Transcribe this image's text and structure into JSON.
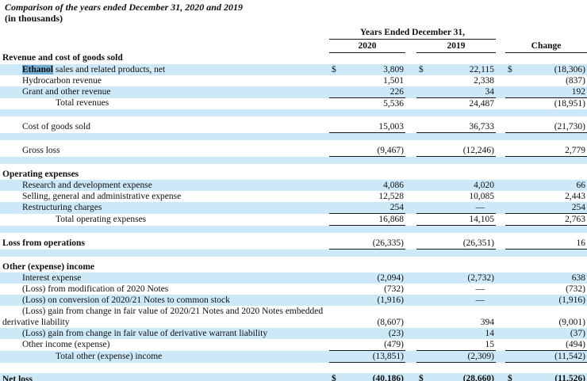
{
  "title": "Comparison of the years ended December 31, 2020 and 2019",
  "subtitle": "(in thousands)",
  "colors": {
    "stripe": "#cde9f7",
    "highlight": "#74aed4",
    "rule": "#1a1a1a"
  },
  "table": {
    "span_header": "Years Ended December 31,",
    "columns": [
      "2020",
      "2019",
      "Change"
    ],
    "currency_symbol": "$",
    "rows": [
      {
        "t": "section",
        "label": "Revenue and cost of goods sold"
      },
      {
        "t": "data",
        "label": "Ethanol sales and related products, net",
        "hl": "Ethanol",
        "ind": 1,
        "bg": 1,
        "usd": true,
        "v": [
          "3,809",
          "22,115",
          "(18,306)"
        ]
      },
      {
        "t": "data",
        "label": "Hydrocarbon revenue",
        "ind": 1,
        "v": [
          "1,501",
          "2,338",
          "(837)"
        ]
      },
      {
        "t": "data",
        "label": "Grant and other revenue",
        "ind": 1,
        "bg": 1,
        "rule": "single",
        "v": [
          "226",
          "34",
          "192"
        ]
      },
      {
        "t": "data",
        "label": "Total revenues",
        "ind": 2,
        "v": [
          "5,536",
          "24,487",
          "(18,951)"
        ]
      },
      {
        "t": "spacer",
        "bg": 1,
        "h": 9
      },
      {
        "t": "spacer",
        "h": 6
      },
      {
        "t": "data",
        "label": "Cost of goods sold",
        "ind": 1,
        "rule": "single",
        "v": [
          "15,003",
          "36,733",
          "(21,730)"
        ]
      },
      {
        "t": "spacer",
        "bg": 1,
        "h": 9
      },
      {
        "t": "spacer",
        "h": 6
      },
      {
        "t": "data",
        "label": "Gross loss",
        "ind": 1,
        "rule": "single",
        "v": [
          "(9,467)",
          "(12,246)",
          "2,779"
        ]
      },
      {
        "t": "spacer",
        "bg": 1,
        "h": 9
      },
      {
        "t": "spacer",
        "h": 6
      },
      {
        "t": "section",
        "label": "Operating expenses"
      },
      {
        "t": "data",
        "label": "Research and development expense",
        "ind": 1,
        "bg": 1,
        "v": [
          "4,086",
          "4,020",
          "66"
        ]
      },
      {
        "t": "data",
        "label": "Selling, general and administrative expense",
        "ind": 1,
        "v": [
          "12,528",
          "10,085",
          "2,443"
        ]
      },
      {
        "t": "data",
        "label": "Restructuring charges",
        "ind": 1,
        "bg": 1,
        "rule": "single",
        "v": [
          "254",
          "—",
          "254"
        ]
      },
      {
        "t": "data",
        "label": "Total operating expenses",
        "ind": 2,
        "rule": "single",
        "v": [
          "16,868",
          "14,105",
          "2,763"
        ]
      },
      {
        "t": "spacer",
        "bg": 1,
        "h": 9
      },
      {
        "t": "spacer",
        "h": 6
      },
      {
        "t": "data",
        "label": "Loss from operations",
        "bold": true,
        "ind": 0,
        "rule": "single",
        "v": [
          "(26,335)",
          "(26,351)",
          "16"
        ]
      },
      {
        "t": "spacer",
        "bg": 1,
        "h": 9
      },
      {
        "t": "spacer",
        "h": 6
      },
      {
        "t": "section",
        "label": "Other (expense) income"
      },
      {
        "t": "data",
        "label": "Interest expense",
        "ind": 1,
        "bg": 1,
        "v": [
          "(2,094)",
          "(2,732)",
          "638"
        ]
      },
      {
        "t": "data",
        "label": "(Loss) from modification of 2020 Notes",
        "ind": 1,
        "v": [
          "(732)",
          "—",
          "(732)"
        ]
      },
      {
        "t": "data",
        "label": "(Loss) on conversion of 2020/21 Notes to common stock",
        "ind": 1,
        "bg": 1,
        "v": [
          "(1,916)",
          "—",
          "(1,916)"
        ]
      },
      {
        "t": "data",
        "label": "(Loss) gain from change in fair value of 2020/21 Notes and 2020 Notes embedded",
        "ind": 1,
        "v": [
          "",
          "",
          ""
        ]
      },
      {
        "t": "data",
        "label": "derivative liability",
        "ind": 0,
        "v": [
          "(8,607)",
          "394",
          "(9,001)"
        ]
      },
      {
        "t": "data",
        "label": "(Loss) gain from change in fair value of derivative warrant liability",
        "ind": 1,
        "bg": 1,
        "v": [
          "(23)",
          "14",
          "(37)"
        ]
      },
      {
        "t": "data",
        "label": "Other income (expense)",
        "ind": 1,
        "rule": "single",
        "v": [
          "(479)",
          "15",
          "(494)"
        ]
      },
      {
        "t": "data",
        "label": "Total other (expense) income",
        "ind": 2,
        "bg": 1,
        "rule": "single",
        "v": [
          "(13,851)",
          "(2,309)",
          "(11,542)"
        ]
      },
      {
        "t": "spacer",
        "h": 13
      },
      {
        "t": "data",
        "label": "Net loss",
        "bold": true,
        "bold_values": true,
        "ind": 0,
        "bg": 1,
        "usd": true,
        "rule": "double",
        "v": [
          "(40,186)",
          "(28,660)",
          "(11,526)"
        ]
      },
      {
        "t": "spacer",
        "h": 5
      },
      {
        "t": "spacer",
        "bg": 1,
        "h": 6
      }
    ]
  }
}
